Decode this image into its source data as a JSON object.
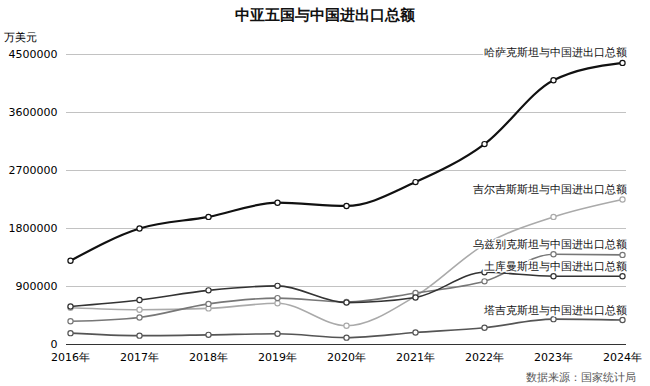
{
  "chart_data": {
    "type": "line",
    "title": "中亚五国与中国进出口总额",
    "y_label": "万美元",
    "source": "数据来源：国家统计局",
    "categories": [
      "2016年",
      "2017年",
      "2018年",
      "2019年",
      "2020年",
      "2021年",
      "2022年",
      "2023年",
      "2024年"
    ],
    "series": [
      {
        "name": "哈萨克斯坦与中国进出口总额",
        "color": "#111111",
        "marker": "circle",
        "values": [
          1300000,
          1800000,
          1980000,
          2200000,
          2150000,
          2520000,
          3110000,
          4100000,
          4370000
        ]
      },
      {
        "name": "吉尔吉斯斯坦与中国进出口总额",
        "color": "#aaaaaa",
        "marker": "circle",
        "values": [
          570000,
          540000,
          560000,
          640000,
          290000,
          750000,
          1550000,
          1980000,
          2250000
        ]
      },
      {
        "name": "乌兹别克斯坦与中国进出口总额",
        "color": "#777777",
        "marker": "circle",
        "values": [
          360000,
          420000,
          630000,
          720000,
          660000,
          800000,
          980000,
          1400000,
          1390000
        ]
      },
      {
        "name": "土库曼斯坦与中国进出口总额",
        "color": "#333333",
        "marker": "circle",
        "values": [
          590000,
          690000,
          840000,
          910000,
          650000,
          730000,
          1120000,
          1060000,
          1060000
        ]
      },
      {
        "name": "塔吉克斯坦与中国进出口总额",
        "color": "#555555",
        "marker": "circle",
        "values": [
          176000,
          137000,
          150000,
          167000,
          106000,
          186000,
          260000,
          393000,
          380000
        ]
      }
    ],
    "ylim": [
      0,
      4500000
    ],
    "yticks": [
      0,
      900000,
      1800000,
      2700000,
      3600000,
      4500000
    ],
    "grid": true
  }
}
